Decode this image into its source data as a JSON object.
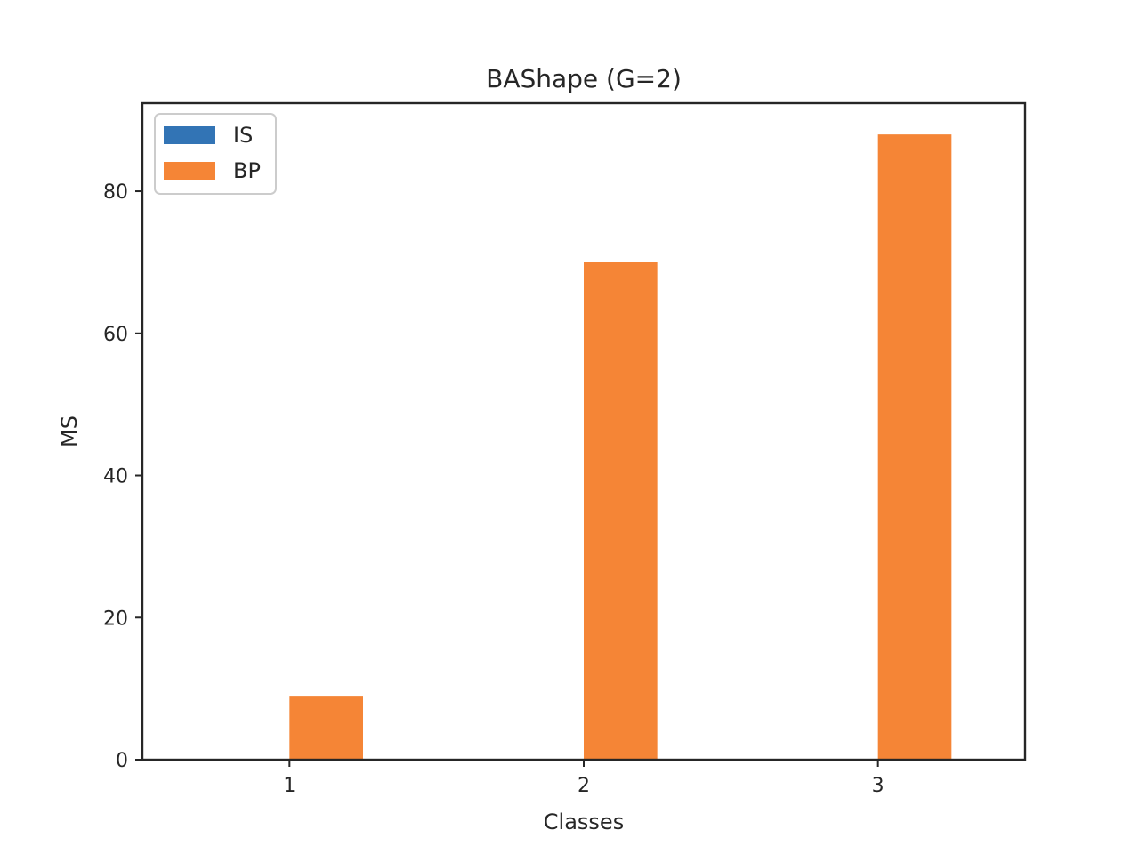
{
  "chart_data": {
    "type": "bar",
    "title": "BAShape (G=2)",
    "xlabel": "Classes",
    "ylabel": "MS",
    "categories": [
      "1",
      "2",
      "3"
    ],
    "series": [
      {
        "name": "IS",
        "values": [
          0,
          0,
          0
        ],
        "color": "#3274b5"
      },
      {
        "name": "BP",
        "values": [
          9,
          70,
          88
        ],
        "color": "#f58536"
      }
    ],
    "ylim": [
      0,
      92.4
    ],
    "yticks": [
      0,
      20,
      40,
      60,
      80
    ],
    "grid": false,
    "legend_position": "top-left"
  }
}
